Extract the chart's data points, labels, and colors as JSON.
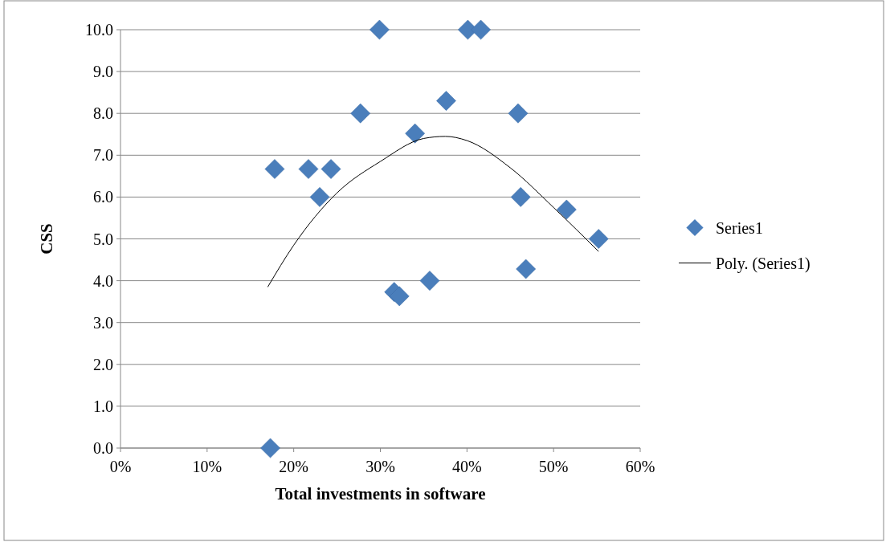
{
  "chart_data": {
    "type": "scatter",
    "xlabel": "Total investments in software",
    "ylabel": "CSS",
    "xlim": [
      0,
      60
    ],
    "xticks": [
      {
        "value": 0,
        "label": "0%"
      },
      {
        "value": 10,
        "label": "10%"
      },
      {
        "value": 20,
        "label": "20%"
      },
      {
        "value": 30,
        "label": "30%"
      },
      {
        "value": 40,
        "label": "40%"
      },
      {
        "value": 50,
        "label": "50%"
      },
      {
        "value": 60,
        "label": "60%"
      }
    ],
    "ylim": [
      0,
      10
    ],
    "yticks": [
      {
        "value": 0,
        "label": "0.0"
      },
      {
        "value": 1,
        "label": "1.0"
      },
      {
        "value": 2,
        "label": "2.0"
      },
      {
        "value": 3,
        "label": "3.0"
      },
      {
        "value": 4,
        "label": "4.0"
      },
      {
        "value": 5,
        "label": "5.0"
      },
      {
        "value": 6,
        "label": "6.0"
      },
      {
        "value": 7,
        "label": "7.0"
      },
      {
        "value": 8,
        "label": "8.0"
      },
      {
        "value": 9,
        "label": "9.0"
      },
      {
        "value": 10,
        "label": "10.0"
      }
    ],
    "grid": "y",
    "legend": "right",
    "series": [
      {
        "name": "Series1",
        "type": "scatter",
        "marker": "diamond",
        "color": "#4a7ebb",
        "x": [
          17.3,
          17.8,
          21.7,
          23.0,
          24.3,
          27.7,
          29.9,
          31.6,
          32.2,
          34.0,
          35.7,
          37.6,
          40.1,
          41.6,
          45.9,
          46.2,
          46.8,
          51.5,
          55.2
        ],
        "values": [
          0,
          6.67,
          6.67,
          6.0,
          6.67,
          8.0,
          10,
          3.73,
          3.63,
          7.52,
          4.0,
          8.3,
          10,
          10,
          8.0,
          6.0,
          4.28,
          5.7,
          5.0
        ]
      },
      {
        "name": "Poly. (Series1)",
        "type": "line",
        "marker": "none",
        "line_style": "solid",
        "color": "#000000",
        "x": [
          17,
          20,
          25,
          30,
          35,
          37.5,
          40,
          45,
          50,
          55.2
        ],
        "values": [
          3.85,
          4.85,
          6.1,
          6.85,
          7.4,
          7.45,
          7.35,
          6.7,
          5.75,
          4.7
        ]
      }
    ]
  }
}
